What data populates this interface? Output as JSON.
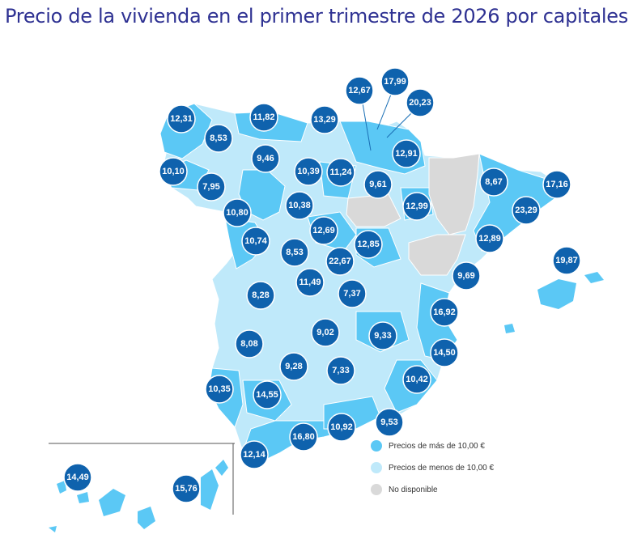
{
  "title": "Precio de la vivienda en el primer trimestre de 2026 por capitales",
  "colors": {
    "above": "#5bc8f5",
    "below": "#bfe9fa",
    "na": "#d9d9d9",
    "bubble": "#0f62ad",
    "title": "#2e3192"
  },
  "legend": [
    {
      "label": "Precios de más de 10,00 €",
      "category": "above"
    },
    {
      "label": "Precios de menos de 10,00 €",
      "category": "below"
    },
    {
      "label": "No disponible",
      "category": "na"
    }
  ],
  "capitals": [
    {
      "value": "12,31",
      "category": "above"
    },
    {
      "value": "8,53",
      "category": "below"
    },
    {
      "value": "11,82",
      "category": "above"
    },
    {
      "value": "13,29",
      "category": "above"
    },
    {
      "value": "12,67",
      "category": "above"
    },
    {
      "value": "17,99",
      "category": "above"
    },
    {
      "value": "20,23",
      "category": "above"
    },
    {
      "value": "10,10",
      "category": "above"
    },
    {
      "value": "9,46",
      "category": "below"
    },
    {
      "value": "12,91",
      "category": "above"
    },
    {
      "value": "7,95",
      "category": "below"
    },
    {
      "value": "10,39",
      "category": "above"
    },
    {
      "value": "11,24",
      "category": "above"
    },
    {
      "value": "9,61",
      "category": "below"
    },
    {
      "value": "8,67",
      "category": "below"
    },
    {
      "value": "17,16",
      "category": "above"
    },
    {
      "value": "10,80",
      "category": "above"
    },
    {
      "value": "10,38",
      "category": "above"
    },
    {
      "value": "12,99",
      "category": "above"
    },
    {
      "value": "23,29",
      "category": "above"
    },
    {
      "value": "12,69",
      "category": "above"
    },
    {
      "value": "10,74",
      "category": "above"
    },
    {
      "value": "12,85",
      "category": "above"
    },
    {
      "value": "12,89",
      "category": "above"
    },
    {
      "value": "8,53",
      "category": "below"
    },
    {
      "value": "22,67",
      "category": "above"
    },
    {
      "value": "19,87",
      "category": "above"
    },
    {
      "value": "9,69",
      "category": "below"
    },
    {
      "value": "11,49",
      "category": "above"
    },
    {
      "value": "8,28",
      "category": "below"
    },
    {
      "value": "7,37",
      "category": "below"
    },
    {
      "value": "16,92",
      "category": "above"
    },
    {
      "value": "9,02",
      "category": "below"
    },
    {
      "value": "9,33",
      "category": "below"
    },
    {
      "value": "8,08",
      "category": "below"
    },
    {
      "value": "14,50",
      "category": "above"
    },
    {
      "value": "9,28",
      "category": "below"
    },
    {
      "value": "7,33",
      "category": "below"
    },
    {
      "value": "10,42",
      "category": "above"
    },
    {
      "value": "10,35",
      "category": "above"
    },
    {
      "value": "14,55",
      "category": "above"
    },
    {
      "value": "9,53",
      "category": "below"
    },
    {
      "value": "10,92",
      "category": "above"
    },
    {
      "value": "16,80",
      "category": "above"
    },
    {
      "value": "12,14",
      "category": "above"
    },
    {
      "value": "14,49",
      "category": "above"
    },
    {
      "value": "15,76",
      "category": "above"
    }
  ]
}
